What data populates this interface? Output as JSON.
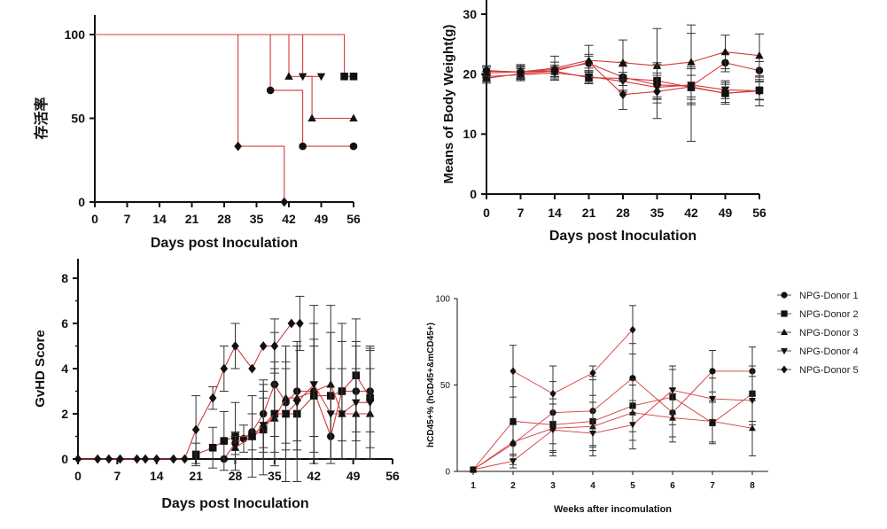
{
  "chart_data": [
    {
      "panel": "top-left",
      "type": "line",
      "style": "step",
      "xlabel": "Days post Inoculation",
      "ylabel": "存活率",
      "xticks": [
        "0",
        "7",
        "14",
        "21",
        "28",
        "35",
        "42",
        "49",
        "56"
      ],
      "yticks": [
        "0",
        "50",
        "100"
      ],
      "xlim": [
        0,
        56
      ],
      "ylim": [
        0,
        100
      ],
      "grid": false,
      "legend": "none",
      "color": "#d33a3a",
      "series": [
        {
          "marker": "circle",
          "points": [
            [
              0,
              100
            ],
            [
              38,
              100
            ],
            [
              38,
              66.7
            ],
            [
              45,
              66.7
            ],
            [
              45,
              33.3
            ],
            [
              56,
              33.3
            ]
          ]
        },
        {
          "marker": "square",
          "points": [
            [
              0,
              100
            ],
            [
              54,
              100
            ],
            [
              54,
              75
            ],
            [
              56,
              75
            ]
          ]
        },
        {
          "marker": "triangle",
          "points": [
            [
              0,
              100
            ],
            [
              42,
              100
            ],
            [
              42,
              75
            ],
            [
              47,
              75
            ],
            [
              47,
              50
            ],
            [
              56,
              50
            ]
          ]
        },
        {
          "marker": "triangle-down",
          "points": [
            [
              0,
              100
            ],
            [
              45,
              100
            ],
            [
              45,
              75
            ],
            [
              49,
              75
            ]
          ]
        },
        {
          "marker": "diamond",
          "points": [
            [
              0,
              100
            ],
            [
              31,
              100
            ],
            [
              31,
              33.3
            ],
            [
              41,
              33.3
            ],
            [
              41,
              0
            ]
          ]
        }
      ]
    },
    {
      "panel": "top-right",
      "type": "line",
      "xlabel": "Days post Inoculation",
      "ylabel": "Means of Body Weight(g)",
      "xticks": [
        "0",
        "7",
        "14",
        "21",
        "28",
        "35",
        "42",
        "49",
        "56"
      ],
      "yticks": [
        "0",
        "10",
        "20",
        "30"
      ],
      "xlim": [
        0,
        56
      ],
      "ylim": [
        0,
        30
      ],
      "grid": false,
      "legend": "none",
      "color": "#d33a3a",
      "x": [
        0,
        7,
        14,
        21,
        28,
        35,
        42,
        49,
        56
      ],
      "series": [
        {
          "marker": "circle",
          "values": [
            20.6,
            20.3,
            20.8,
            21.8,
            19.5,
            18.2,
            18.0,
            21.9,
            20.6
          ],
          "err": [
            0.8,
            1.0,
            1.2,
            1.5,
            2.5,
            2.0,
            1.8,
            1.5,
            1.5
          ]
        },
        {
          "marker": "square",
          "values": [
            19.3,
            20.1,
            20.5,
            19.4,
            19.3,
            18.9,
            17.8,
            16.8,
            17.3
          ],
          "err": [
            0.8,
            1.0,
            1.0,
            1.0,
            2.0,
            3.0,
            9.0,
            1.5,
            1.5
          ]
        },
        {
          "marker": "triangle",
          "values": [
            20.2,
            20.4,
            21.0,
            22.3,
            21.9,
            21.4,
            22.0,
            23.7,
            23.1
          ],
          "err": [
            0.8,
            1.2,
            2.0,
            2.5,
            3.8,
            6.2,
            6.2,
            2.8,
            3.6
          ]
        },
        {
          "marker": "triangle-down",
          "values": [
            19.6,
            19.9,
            20.2,
            19.6,
            18.8,
            17.8,
            18.2,
            17.4,
            17.2
          ],
          "err": [
            0.8,
            1.0,
            1.0,
            1.0,
            1.5,
            2.0,
            3.0,
            1.5,
            1.5
          ]
        },
        {
          "marker": "diamond",
          "values": [
            20.5,
            20.4,
            20.5,
            22.0,
            16.6,
            17.1,
            17.9,
            16.8,
            17.2
          ],
          "err": [
            0.8,
            1.0,
            1.0,
            1.0,
            2.5,
            4.5,
            3.0,
            1.8,
            2.5
          ]
        }
      ]
    },
    {
      "panel": "bottom-left",
      "type": "line",
      "xlabel": "Days post Inoculation",
      "ylabel": "GvHD Score",
      "xticks": [
        "0",
        "7",
        "14",
        "21",
        "28",
        "35",
        "42",
        "49",
        "56"
      ],
      "yticks": [
        "0",
        "2",
        "4",
        "6",
        "8"
      ],
      "xlim": [
        0,
        56
      ],
      "ylim": [
        0,
        8
      ],
      "grid": false,
      "legend": "none",
      "color": "#d33a3a",
      "series": [
        {
          "marker": "circle",
          "points": [
            [
              26,
              0
            ],
            [
              28,
              0.7
            ],
            [
              29.5,
              0.9
            ],
            [
              31,
              1.2
            ],
            [
              33,
              2.0
            ],
            [
              35,
              3.3
            ],
            [
              37,
              2.5
            ],
            [
              39,
              3.0
            ],
            [
              42,
              3.0
            ],
            [
              45,
              1.0
            ],
            [
              47,
              3.0
            ],
            [
              49.5,
              3.0
            ],
            [
              52,
              3.0
            ]
          ],
          "err": [
            0,
            0.5,
            0.6,
            0.8,
            1.5,
            2.3,
            1.8,
            2.2,
            2.0,
            0,
            2.2,
            2.2,
            1.8
          ]
        },
        {
          "marker": "square",
          "points": [
            [
              21,
              0.2
            ],
            [
              24,
              0.5
            ],
            [
              26,
              0.8
            ],
            [
              28,
              1.0
            ],
            [
              31,
              1.0
            ],
            [
              33,
              1.3
            ],
            [
              35,
              2.0
            ],
            [
              37,
              2.0
            ],
            [
              39,
              2.0
            ],
            [
              42,
              2.8
            ],
            [
              45,
              2.8
            ],
            [
              47,
              3.0
            ],
            [
              49.5,
              3.7
            ],
            [
              52,
              2.7
            ]
          ],
          "err": [
            0.5,
            0.9,
            1.3,
            1.5,
            1.8,
            2.0,
            2.3,
            3.0,
            3.0,
            2.5,
            2.8,
            3.0,
            2.5,
            2.2
          ]
        },
        {
          "marker": "triangle",
          "points": [
            [
              28,
              0.5
            ],
            [
              31,
              1.0
            ],
            [
              33,
              1.5
            ],
            [
              35,
              1.8
            ],
            [
              37,
              2.7
            ],
            [
              39,
              2.7
            ],
            [
              42,
              3.0
            ],
            [
              45,
              3.3
            ],
            [
              47,
              2.0
            ],
            [
              49.5,
              2.0
            ],
            [
              52,
              2.0
            ]
          ],
          "err": [
            0.5,
            1.0,
            1.2,
            1.5,
            2.3,
            2.3,
            3.0,
            3.5,
            2.0,
            2.0,
            2.0
          ]
        },
        {
          "marker": "triangle-down",
          "points": [
            [
              31,
              1.0
            ],
            [
              33,
              1.5
            ],
            [
              35,
              2.0
            ],
            [
              37,
              2.0
            ],
            [
              39,
              2.5
            ],
            [
              42,
              3.3
            ],
            [
              45,
              2.0
            ],
            [
              47,
              2.0
            ],
            [
              49.5,
              2.5
            ],
            [
              52,
              2.5
            ]
          ],
          "err": [
            1.0,
            1.5,
            2.0,
            2.0,
            2.5,
            3.5,
            2.0,
            2.0,
            2.5,
            2.5
          ]
        },
        {
          "marker": "diamond",
          "points": [
            [
              0,
              0
            ],
            [
              3.5,
              0
            ],
            [
              5.5,
              0
            ],
            [
              7.5,
              0
            ],
            [
              10.5,
              0
            ],
            [
              12,
              0
            ],
            [
              14,
              0
            ],
            [
              17,
              0
            ],
            [
              19,
              0
            ],
            [
              21,
              1.3
            ],
            [
              24,
              2.7
            ],
            [
              26,
              4.0
            ],
            [
              28,
              5.0
            ],
            [
              31,
              4.0
            ],
            [
              33,
              5.0
            ],
            [
              35,
              5.0
            ],
            [
              38,
              6.0
            ],
            [
              39.5,
              6.0
            ]
          ],
          "err": [
            0,
            0,
            0,
            0,
            0,
            0,
            0,
            0,
            0,
            1.5,
            0.5,
            1.0,
            1.0,
            0,
            0,
            1.2,
            0,
            1.2
          ]
        }
      ]
    },
    {
      "panel": "bottom-right",
      "type": "line",
      "xlabel": "Weeks after incomulation",
      "ylabel": "hCD45+% (hCD45+&mCD45+)",
      "xticks": [
        "1",
        "2",
        "3",
        "4",
        "5",
        "6",
        "7",
        "8"
      ],
      "yticks": [
        "0",
        "50",
        "100"
      ],
      "xlim": [
        0.6,
        8.4
      ],
      "ylim": [
        0,
        100
      ],
      "grid": false,
      "legend": "right",
      "color": "#d33a3a",
      "x": [
        1,
        2,
        3,
        4,
        5,
        6,
        7,
        8
      ],
      "series": [
        {
          "name": "NPG-Donor 1",
          "marker": "circle",
          "values": [
            1,
            16,
            34,
            35,
            54,
            34,
            58,
            58
          ],
          "err": [
            0,
            12,
            18,
            20,
            20,
            14,
            12,
            14
          ]
        },
        {
          "name": "NPG-Donor 2",
          "marker": "square",
          "values": [
            1,
            29,
            27,
            29,
            38,
            43,
            28,
            45
          ],
          "err": [
            0,
            20,
            15,
            15,
            15,
            16,
            12,
            16
          ]
        },
        {
          "name": "NPG-Donor 3",
          "marker": "triangle",
          "values": [
            1,
            17,
            25,
            26,
            34,
            31,
            29,
            25
          ],
          "err": [
            0,
            10,
            14,
            14,
            16,
            14,
            12,
            16
          ]
        },
        {
          "name": "NPG-Donor 4",
          "marker": "triangle-down",
          "values": [
            1,
            6,
            24,
            22,
            27,
            47,
            42,
            41
          ],
          "err": [
            0,
            4,
            15,
            13,
            14,
            14,
            12,
            14
          ]
        },
        {
          "name": "NPG-Donor 5",
          "marker": "diamond",
          "values": [
            null,
            58,
            45,
            57,
            82,
            null,
            null,
            null
          ],
          "err": [
            0,
            15,
            16,
            4,
            14,
            0,
            0,
            0
          ]
        }
      ]
    }
  ]
}
